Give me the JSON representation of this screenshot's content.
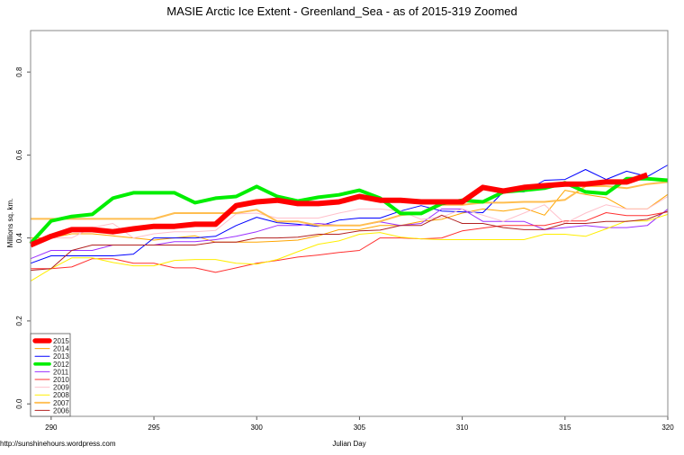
{
  "chart_data": {
    "type": "line",
    "title": "MASIE Arctic Ice Extent - Greenland_Sea - as of 2015-319 Zoomed",
    "xlabel": "Julian Day",
    "ylabel": "Millions sq. km.",
    "footer": "http://sunshinehours.wordpress.com",
    "xlim": [
      289,
      320
    ],
    "ylim": [
      -0.03,
      0.9
    ],
    "xticks": [
      290,
      295,
      300,
      305,
      310,
      315,
      320
    ],
    "yticks": [
      "0.0",
      "0.2",
      "0.4",
      "0.6",
      "0.8"
    ],
    "legend_position": "bottom-left",
    "grid": false,
    "x_start": 289,
    "series": [
      {
        "name": "2015",
        "color": "#ff0000",
        "width": 6,
        "values": [
          0.383,
          0.404,
          0.42,
          0.42,
          0.415,
          0.422,
          0.428,
          0.428,
          0.433,
          0.433,
          0.478,
          0.487,
          0.491,
          0.483,
          0.483,
          0.487,
          0.5,
          0.491,
          0.491,
          0.487,
          0.487,
          0.487,
          0.522,
          0.513,
          0.522,
          0.526,
          0.53,
          0.53,
          0.535,
          0.535,
          0.552
        ]
      },
      {
        "name": "2014",
        "color": "#ffa500",
        "width": 1,
        "values": [
          0.4,
          0.4,
          0.41,
          0.41,
          0.405,
          0.4,
          0.395,
          0.4,
          0.405,
          0.39,
          0.39,
          0.39,
          0.392,
          0.395,
          0.405,
          0.42,
          0.42,
          0.43,
          0.43,
          0.44,
          0.445,
          0.46,
          0.47,
          0.465,
          0.472,
          0.455,
          0.515,
          0.505,
          0.497,
          0.47,
          0.47,
          0.505
        ]
      },
      {
        "name": "2013",
        "color": "#0000ff",
        "width": 1,
        "values": [
          0.339,
          0.357,
          0.357,
          0.357,
          0.357,
          0.361,
          0.4,
          0.4,
          0.4,
          0.404,
          0.43,
          0.45,
          0.437,
          0.433,
          0.428,
          0.443,
          0.448,
          0.448,
          0.465,
          0.478,
          0.465,
          0.463,
          0.461,
          0.511,
          0.511,
          0.539,
          0.541,
          0.565,
          0.541,
          0.561,
          0.548,
          0.576
        ]
      },
      {
        "name": "2012",
        "color": "#00ee00",
        "width": 4,
        "values": [
          0.387,
          0.441,
          0.452,
          0.457,
          0.496,
          0.509,
          0.509,
          0.509,
          0.485,
          0.496,
          0.5,
          0.524,
          0.5,
          0.489,
          0.498,
          0.504,
          0.515,
          0.496,
          0.459,
          0.459,
          0.483,
          0.491,
          0.487,
          0.511,
          0.515,
          0.52,
          0.533,
          0.511,
          0.507,
          0.543,
          0.543,
          0.539
        ]
      },
      {
        "name": "2011",
        "color": "#9b30ff",
        "width": 1,
        "values": [
          0.35,
          0.37,
          0.37,
          0.37,
          0.383,
          0.383,
          0.383,
          0.391,
          0.391,
          0.396,
          0.404,
          0.415,
          0.43,
          0.43,
          0.435,
          0.43,
          0.43,
          0.439,
          0.43,
          0.435,
          0.47,
          0.47,
          0.44,
          0.44,
          0.44,
          0.42,
          0.425,
          0.43,
          0.425,
          0.425,
          0.43,
          0.47
        ]
      },
      {
        "name": "2010",
        "color": "#ff3030",
        "width": 1,
        "values": [
          0.326,
          0.326,
          0.33,
          0.35,
          0.35,
          0.339,
          0.339,
          0.328,
          0.328,
          0.317,
          0.328,
          0.339,
          0.346,
          0.354,
          0.359,
          0.365,
          0.37,
          0.4,
          0.4,
          0.398,
          0.4,
          0.417,
          0.424,
          0.43,
          0.43,
          0.43,
          0.441,
          0.441,
          0.461,
          0.454,
          0.454,
          0.463
        ]
      },
      {
        "name": "2009",
        "color": "#ffc0cb",
        "width": 1,
        "values": [
          0.39,
          0.4,
          0.4,
          0.425,
          0.435,
          0.4,
          0.41,
          0.415,
          0.415,
          0.418,
          0.458,
          0.46,
          0.448,
          0.448,
          0.448,
          0.46,
          0.47,
          0.47,
          0.465,
          0.445,
          0.45,
          0.47,
          0.455,
          0.44,
          0.46,
          0.48,
          0.435,
          0.46,
          0.48,
          0.47,
          0.47,
          0.5
        ]
      },
      {
        "name": "2008",
        "color": "#ffee00",
        "width": 1,
        "values": [
          0.296,
          0.326,
          0.352,
          0.352,
          0.341,
          0.333,
          0.333,
          0.346,
          0.348,
          0.348,
          0.339,
          0.337,
          0.348,
          0.367,
          0.385,
          0.393,
          0.409,
          0.413,
          0.402,
          0.398,
          0.396,
          0.396,
          0.396,
          0.396,
          0.396,
          0.409,
          0.409,
          0.404,
          0.422,
          0.441,
          0.441,
          0.457
        ]
      },
      {
        "name": "2007",
        "color": "#ffbe50",
        "width": 2,
        "values": [
          0.446,
          0.446,
          0.446,
          0.446,
          0.446,
          0.446,
          0.446,
          0.46,
          0.46,
          0.46,
          0.46,
          0.468,
          0.44,
          0.44,
          0.43,
          0.43,
          0.43,
          0.44,
          0.455,
          0.46,
          0.48,
          0.48,
          0.485,
          0.485,
          0.487,
          0.487,
          0.492,
          0.525,
          0.525,
          0.52,
          0.53,
          0.535
        ]
      },
      {
        "name": "2006",
        "color": "#b22222",
        "width": 1,
        "values": [
          0.322,
          0.326,
          0.37,
          0.383,
          0.383,
          0.383,
          0.383,
          0.383,
          0.383,
          0.39,
          0.39,
          0.4,
          0.4,
          0.402,
          0.409,
          0.409,
          0.417,
          0.419,
          0.43,
          0.43,
          0.455,
          0.435,
          0.435,
          0.425,
          0.42,
          0.42,
          0.435,
          0.435,
          0.44,
          0.44,
          0.445,
          0.465
        ]
      }
    ]
  }
}
